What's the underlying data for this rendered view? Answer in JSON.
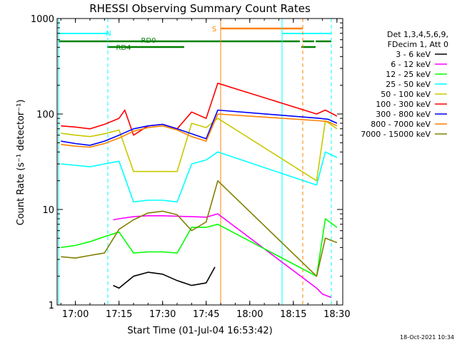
{
  "chart_data": {
    "type": "line",
    "title": "RHESSI Observing Summary Count Rates",
    "xlabel": "Start Time (01-Jul-04 16:53:42)",
    "ylabel": "Count Rate (s⁻¹ detector⁻¹)",
    "yscale": "log",
    "ylim": [
      1,
      1000
    ],
    "xlim": [
      "16:53:42",
      "18:32:00"
    ],
    "x_ticks": [
      "17:00",
      "17:15",
      "17:30",
      "17:45",
      "18:00",
      "18:15",
      "18:30"
    ],
    "y_ticks": [
      "1",
      "10",
      "100",
      "1000"
    ],
    "footer": "18-Oct-2021 10:34",
    "legend": {
      "placement": "right",
      "header": [
        "Det 1,3,4,5,6,9,",
        "FDecim 1, Att 0"
      ]
    },
    "series": [
      {
        "name": "3 - 6 keV",
        "color": "#000000",
        "x": [
          "17:13",
          "17:15",
          "17:20",
          "17:25",
          "17:30",
          "17:35",
          "17:40",
          "17:45",
          "17:48"
        ],
        "y": [
          1.6,
          1.5,
          2.0,
          2.2,
          2.1,
          1.8,
          1.6,
          1.7,
          2.5
        ]
      },
      {
        "name": "6 - 12 keV",
        "color": "#ff00ff",
        "x": [
          "17:13",
          "17:15",
          "17:20",
          "17:25",
          "17:30",
          "17:35",
          "17:40",
          "17:45",
          "17:49",
          "18:23",
          "18:25",
          "18:28"
        ],
        "y": [
          7.8,
          8.0,
          8.4,
          8.6,
          8.6,
          8.5,
          8.4,
          8.3,
          9.0,
          1.5,
          1.3,
          1.2
        ]
      },
      {
        "name": "12 - 25 keV",
        "color": "#00ff00",
        "x": [
          "16:55",
          "17:00",
          "17:05",
          "17:10",
          "17:15",
          "17:20",
          "17:25",
          "17:30",
          "17:35",
          "17:40",
          "17:45",
          "17:49",
          "18:23",
          "18:26",
          "18:30"
        ],
        "y": [
          4.0,
          4.2,
          4.6,
          5.2,
          5.8,
          3.5,
          3.6,
          3.6,
          3.5,
          6.5,
          6.5,
          7.0,
          2.0,
          8.0,
          6.5
        ]
      },
      {
        "name": "25 - 50 keV",
        "color": "#00ffff",
        "x": [
          "16:55",
          "17:00",
          "17:05",
          "17:10",
          "17:15",
          "17:20",
          "17:25",
          "17:30",
          "17:35",
          "17:40",
          "17:45",
          "17:49",
          "18:23",
          "18:26",
          "18:30"
        ],
        "y": [
          30,
          29,
          28,
          30,
          32,
          12,
          12.5,
          12.5,
          12,
          30,
          33,
          40,
          18,
          40,
          35
        ]
      },
      {
        "name": "50 - 100 keV",
        "color": "#c8c800",
        "x": [
          "16:55",
          "17:00",
          "17:05",
          "17:10",
          "17:15",
          "17:20",
          "17:25",
          "17:30",
          "17:35",
          "17:40",
          "17:45",
          "17:49",
          "18:23",
          "18:26",
          "18:30"
        ],
        "y": [
          63,
          60,
          58,
          62,
          68,
          25,
          25,
          25,
          25,
          80,
          72,
          90,
          20,
          85,
          70
        ]
      },
      {
        "name": "100 - 300 keV",
        "color": "#ff0000",
        "x": [
          "16:55",
          "17:00",
          "17:05",
          "17:10",
          "17:15",
          "17:17",
          "17:20",
          "17:25",
          "17:30",
          "17:35",
          "17:40",
          "17:45",
          "17:49",
          "18:23",
          "18:26",
          "18:30"
        ],
        "y": [
          75,
          73,
          70,
          78,
          90,
          110,
          60,
          75,
          78,
          70,
          105,
          90,
          210,
          100,
          110,
          95
        ]
      },
      {
        "name": "300 - 800 keV",
        "color": "#0000ff",
        "x": [
          "16:55",
          "17:00",
          "17:05",
          "17:10",
          "17:15",
          "17:20",
          "17:25",
          "17:30",
          "17:35",
          "17:40",
          "17:45",
          "17:49",
          "18:24",
          "18:27",
          "18:30"
        ],
        "y": [
          52,
          49,
          47,
          52,
          60,
          70,
          75,
          78,
          70,
          62,
          55,
          110,
          90,
          88,
          80
        ]
      },
      {
        "name": "800 - 7000 keV",
        "color": "#ff8000",
        "x": [
          "16:55",
          "17:00",
          "17:05",
          "17:10",
          "17:15",
          "17:20",
          "17:25",
          "17:30",
          "17:35",
          "17:40",
          "17:45",
          "17:49",
          "18:24",
          "18:27",
          "18:30"
        ],
        "y": [
          48,
          46,
          45,
          49,
          56,
          66,
          72,
          75,
          68,
          58,
          52,
          100,
          85,
          83,
          75
        ]
      },
      {
        "name": "7000 - 15000 keV",
        "color": "#808000",
        "x": [
          "16:55",
          "17:00",
          "17:05",
          "17:10",
          "17:15",
          "17:20",
          "17:25",
          "17:30",
          "17:35",
          "17:40",
          "17:45",
          "17:49",
          "18:23",
          "18:26",
          "18:30"
        ],
        "y": [
          3.2,
          3.1,
          3.3,
          3.5,
          6.2,
          7.8,
          9.2,
          9.6,
          8.8,
          6.0,
          7.4,
          20,
          2.0,
          5.0,
          4.5
        ]
      }
    ],
    "annotations": [
      {
        "label": "N",
        "color": "#00ffff",
        "x": "17:15"
      },
      {
        "label": "RD0",
        "color": "#008000",
        "x": "17:21"
      },
      {
        "label": "RD4",
        "color": "#008000",
        "x": "17:13"
      },
      {
        "label": "S",
        "color": "#ff8000",
        "x": "17:50"
      }
    ]
  }
}
